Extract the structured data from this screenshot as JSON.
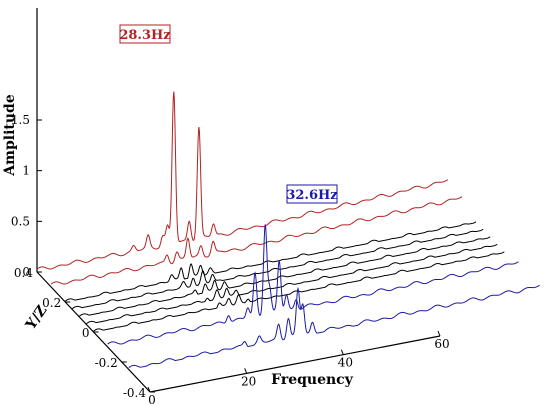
{
  "chart_data": {
    "type": "line",
    "title": "",
    "x_axis": {
      "label": "Frequency",
      "range": [
        0,
        60
      ],
      "ticks": [
        "0",
        "20",
        "40",
        "60"
      ]
    },
    "y_axis": {
      "label": "Y/Z",
      "range": [
        -0.4,
        0.4
      ],
      "ticks": [
        "0.4",
        "0.2",
        "0",
        "-0.2",
        "-0.4"
      ]
    },
    "z_axis": {
      "label": "Amplitude",
      "range": [
        0,
        1.6
      ],
      "ticks": [
        "0",
        "0.5",
        "1",
        "1.5"
      ]
    },
    "grid": false,
    "series": [
      {
        "yz": 0.4,
        "color": "#b22222",
        "peaks": [
          [
            20,
            0.05
          ],
          [
            23,
            0.12
          ],
          [
            26,
            0.1
          ],
          [
            27,
            0.18
          ],
          [
            28.3,
            1.5
          ],
          [
            31.5,
            0.2
          ],
          [
            33.5,
            1.1
          ],
          [
            36.5,
            0.12
          ]
        ],
        "tail": [
          0.02,
          0.12
        ]
      },
      {
        "yz": 0.3,
        "color": "#b22222",
        "peaks": [
          [
            24,
            0.08
          ],
          [
            26,
            0.09
          ],
          [
            28.3,
            0.2
          ],
          [
            31,
            0.1
          ],
          [
            33.5,
            0.12
          ]
        ],
        "tail": [
          0.02,
          0.1
        ]
      },
      {
        "yz": 0.2,
        "color": "#000000",
        "peaks": [
          [
            22,
            0.06
          ],
          [
            24,
            0.12
          ],
          [
            26,
            0.14
          ],
          [
            28,
            0.1
          ],
          [
            30,
            0.05
          ]
        ],
        "tail": [
          0.0,
          0.0
        ]
      },
      {
        "yz": 0.15,
        "color": "#000000",
        "peaks": [
          [
            23,
            0.05
          ],
          [
            25,
            0.1
          ],
          [
            27,
            0.12
          ],
          [
            29,
            0.08
          ]
        ],
        "tail": [
          0.0,
          0.0
        ]
      },
      {
        "yz": 0.1,
        "color": "#000000",
        "peaks": [
          [
            24,
            0.05
          ],
          [
            26,
            0.09
          ],
          [
            28,
            0.1
          ],
          [
            30,
            0.06
          ]
        ],
        "tail": [
          0.0,
          0.0
        ]
      },
      {
        "yz": 0.05,
        "color": "#000000",
        "peaks": [
          [
            25,
            0.05
          ],
          [
            27,
            0.08
          ],
          [
            29,
            0.09
          ],
          [
            31,
            0.05
          ]
        ],
        "tail": [
          0.0,
          0.0
        ]
      },
      {
        "yz": 0.0,
        "color": "#000000",
        "peaks": [
          [
            26,
            0.05
          ],
          [
            28,
            0.07
          ],
          [
            30,
            0.08
          ],
          [
            32,
            0.05
          ]
        ],
        "tail": [
          0.0,
          0.0
        ]
      },
      {
        "yz": -0.1,
        "color": "#1a1aa6",
        "peaks": [
          [
            25,
            0.08
          ],
          [
            29,
            0.1
          ],
          [
            30.5,
            0.42
          ],
          [
            32.6,
            0.9
          ],
          [
            33.5,
            0.25
          ],
          [
            35.5,
            0.5
          ],
          [
            37,
            0.15
          ],
          [
            39,
            0.1
          ]
        ],
        "tail": [
          0.02,
          0.05
        ]
      },
      {
        "yz": -0.25,
        "color": "#1a1aa6",
        "peaks": [
          [
            24,
            0.05
          ],
          [
            27,
            0.06
          ],
          [
            31,
            0.15
          ],
          [
            33,
            0.2
          ],
          [
            35,
            0.45
          ],
          [
            36,
            0.3
          ],
          [
            38,
            0.1
          ]
        ],
        "tail": [
          0.01,
          0.04
        ]
      }
    ],
    "annotations": [
      {
        "text": "28.3Hz",
        "color": "#b22222"
      },
      {
        "text": "32.6Hz",
        "color": "#1a1aa6"
      }
    ]
  }
}
